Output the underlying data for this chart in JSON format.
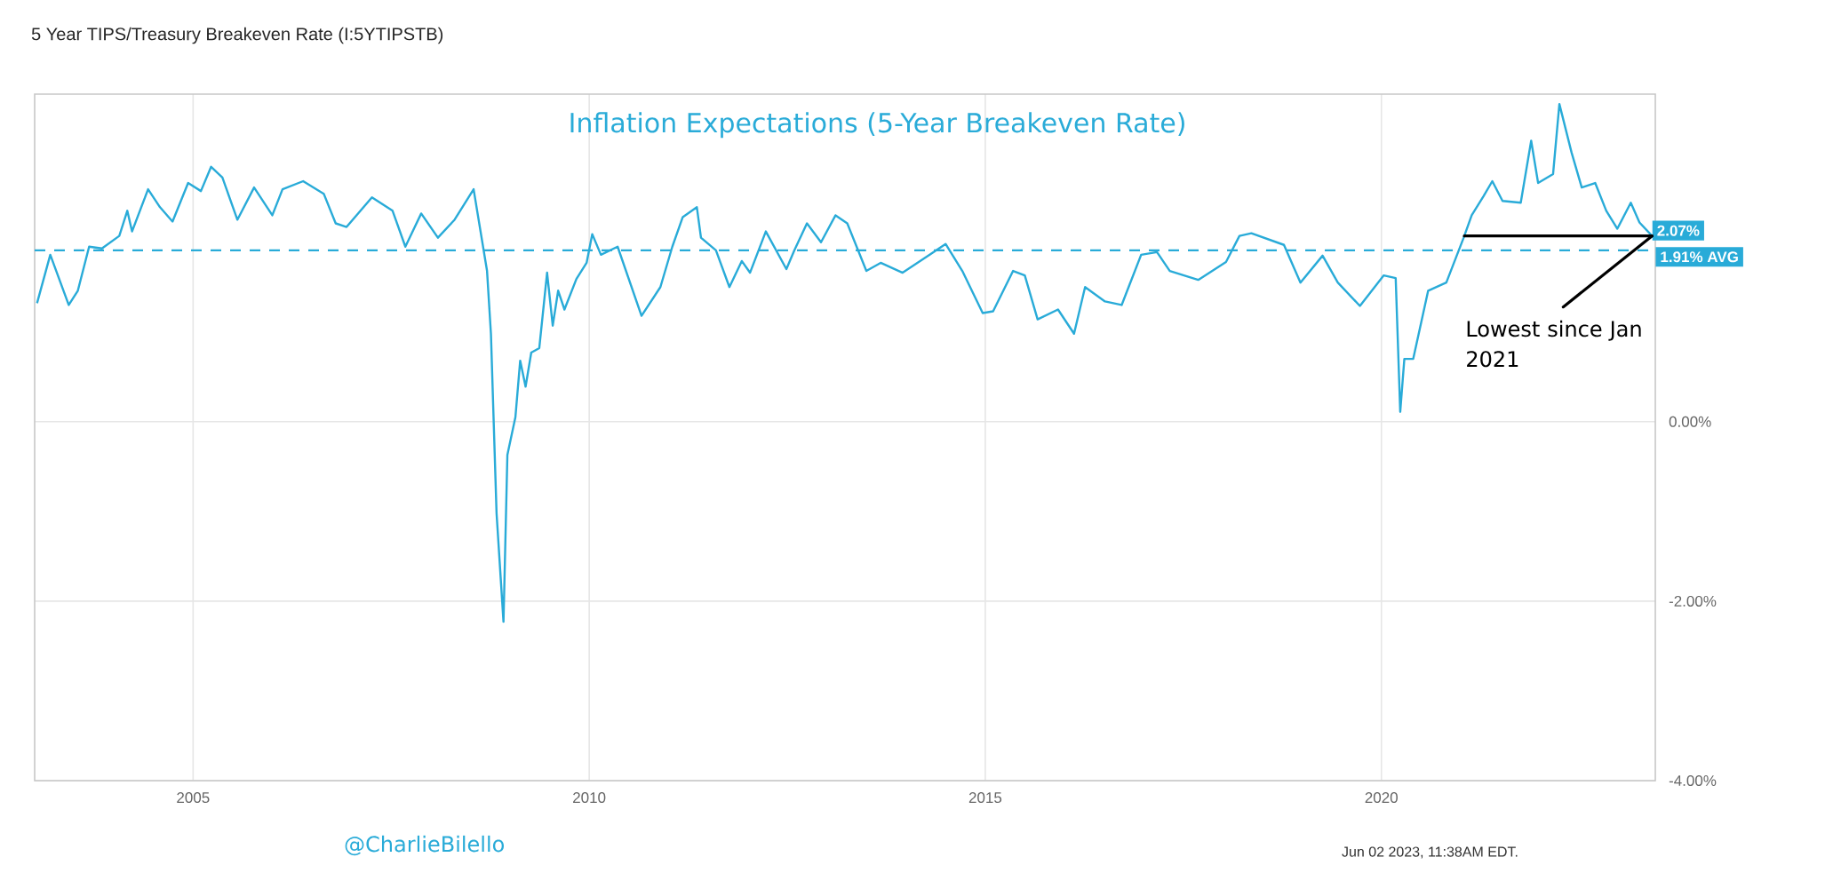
{
  "chart_data": {
    "type": "line",
    "title": "5 Year TIPS/Treasury Breakeven Rate (I:5YTIPSTB)",
    "subtitle": "Inflation Expectations (5-Year Breakeven Rate)",
    "color": "#29abd8",
    "grid": true,
    "x": [
      "2003-01-12",
      "2003-03-14",
      "2003-06-07",
      "2003-07-19",
      "2003-09-09",
      "2003-11-07",
      "2004-01-26",
      "2004-03-03",
      "2004-03-25",
      "2004-06-07",
      "2004-08-01",
      "2004-09-28",
      "2004-12-09",
      "2005-02-06",
      "2005-03-25",
      "2005-05-16",
      "2005-07-24",
      "2005-10-09",
      "2006-01-01",
      "2006-02-17",
      "2006-05-23",
      "2006-08-26",
      "2006-10-20",
      "2006-12-09",
      "2007-04-05",
      "2007-07-09",
      "2007-09-06",
      "2007-11-18",
      "2008-02-03",
      "2008-04-20",
      "2008-07-17",
      "2008-09-17",
      "2008-10-05",
      "2008-10-31",
      "2008-12-02",
      "2008-12-20",
      "2009-01-26",
      "2009-02-17",
      "2009-03-14",
      "2009-04-09",
      "2009-05-16",
      "2009-06-21",
      "2009-07-17",
      "2009-08-11",
      "2009-09-09",
      "2009-11-03",
      "2009-12-20",
      "2010-01-15",
      "2010-02-24",
      "2010-05-12",
      "2010-08-30",
      "2010-11-25",
      "2011-01-19",
      "2011-03-08",
      "2011-05-12",
      "2011-05-31",
      "2011-08-08",
      "2011-10-09",
      "2011-12-05",
      "2012-01-12",
      "2012-03-25",
      "2012-06-28",
      "2012-08-04",
      "2012-10-01",
      "2012-12-05",
      "2013-02-10",
      "2013-04-05",
      "2013-07-02",
      "2013-09-06",
      "2013-12-16",
      "2014-04-20",
      "2014-07-02",
      "2014-09-17",
      "2014-12-20",
      "2015-02-06",
      "2015-05-09",
      "2015-07-02",
      "2015-08-30",
      "2015-12-02",
      "2016-02-14",
      "2016-04-05",
      "2016-07-06",
      "2016-09-21",
      "2016-12-20",
      "2017-03-03",
      "2017-05-01",
      "2017-09-09",
      "2018-01-15",
      "2018-03-18",
      "2018-05-12",
      "2018-10-09",
      "2018-12-24",
      "2019-04-05",
      "2019-06-14",
      "2019-09-24",
      "2020-01-12",
      "2020-03-07",
      "2020-03-28",
      "2020-04-16",
      "2020-05-27",
      "2020-08-04",
      "2020-10-27",
      "2021-01-15",
      "2021-02-21",
      "2021-04-16",
      "2021-05-27",
      "2021-07-13",
      "2021-10-05",
      "2021-11-22",
      "2021-12-24",
      "2022-03-03",
      "2022-04-01",
      "2022-05-27",
      "2022-07-13",
      "2022-09-13",
      "2022-11-03",
      "2022-12-24",
      "2023-02-24",
      "2023-04-05",
      "2023-06-02"
    ],
    "values": [
      1.32,
      1.86,
      1.3,
      1.46,
      1.95,
      1.93,
      2.07,
      2.35,
      2.12,
      2.59,
      2.39,
      2.23,
      2.66,
      2.57,
      2.84,
      2.72,
      2.25,
      2.61,
      2.3,
      2.59,
      2.68,
      2.54,
      2.21,
      2.17,
      2.5,
      2.35,
      1.95,
      2.32,
      2.05,
      2.25,
      2.59,
      1.68,
      0.98,
      -1.02,
      -2.23,
      -0.37,
      0.05,
      0.68,
      0.39,
      0.77,
      0.82,
      1.66,
      1.07,
      1.46,
      1.25,
      1.59,
      1.77,
      2.09,
      1.86,
      1.95,
      1.18,
      1.5,
      1.95,
      2.28,
      2.39,
      2.05,
      1.91,
      1.5,
      1.79,
      1.66,
      2.12,
      1.7,
      1.91,
      2.21,
      2.0,
      2.3,
      2.21,
      1.68,
      1.77,
      1.66,
      1.86,
      1.98,
      1.68,
      1.21,
      1.23,
      1.68,
      1.63,
      1.14,
      1.25,
      0.98,
      1.5,
      1.34,
      1.3,
      1.86,
      1.89,
      1.68,
      1.58,
      1.78,
      2.07,
      2.1,
      1.97,
      1.55,
      1.85,
      1.55,
      1.29,
      1.63,
      1.6,
      0.11,
      0.7,
      0.7,
      1.46,
      1.55,
      2.05,
      2.3,
      2.51,
      2.68,
      2.46,
      2.44,
      3.13,
      2.66,
      2.76,
      3.54,
      3.0,
      2.61,
      2.66,
      2.35,
      2.15,
      2.44,
      2.22,
      2.07
    ],
    "xlim": [
      "2003-01-01",
      "2023-06-17"
    ],
    "xticks": [
      {
        "value": "2005-01-01",
        "label": "2005"
      },
      {
        "value": "2010-01-01",
        "label": "2010"
      },
      {
        "value": "2015-01-01",
        "label": "2015"
      },
      {
        "value": "2020-01-01",
        "label": "2020"
      }
    ],
    "ylim": [
      -4,
      3.65
    ],
    "yticks": [
      {
        "value": -4,
        "label": "-4.00%"
      },
      {
        "value": -2,
        "label": "-2.00%"
      },
      {
        "value": 0,
        "label": "0.00%"
      }
    ],
    "ref_lines": [
      {
        "axis": "y",
        "value": 1.91,
        "label": "1.91% AVG",
        "color": "#29abd8",
        "line_style": "dashed"
      }
    ],
    "annotations": [
      {
        "text": "2.07%",
        "x": "2023-06-02",
        "y": 2.07
      },
      {
        "text": "Lowest since Jan 2021",
        "x": "2023-06-02",
        "y": 2.07
      },
      "@CharlieBilello",
      "Jun 02 2023, 11:38AM EDT."
    ]
  }
}
